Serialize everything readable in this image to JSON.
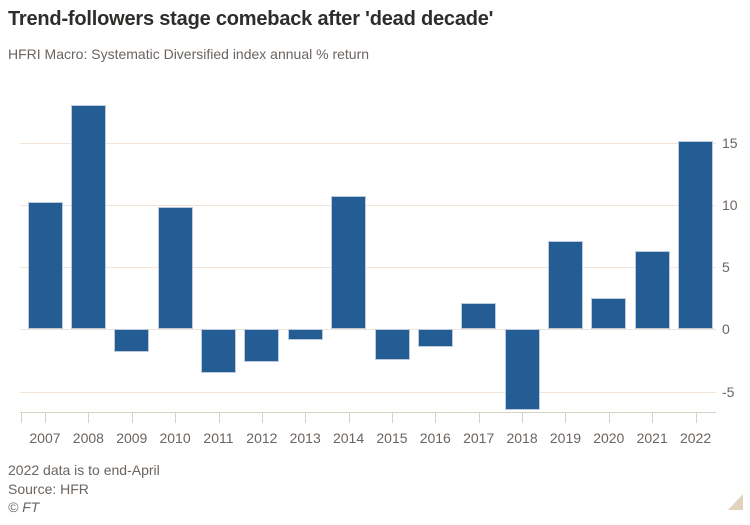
{
  "header": {
    "title": "Trend-followers stage comeback after 'dead decade'",
    "subtitle": "HFRI Macro: Systematic Diversified index annual % return"
  },
  "footer": {
    "note": "2022 data is to end-April",
    "source": "Source: HFR",
    "copyright": "© FT"
  },
  "chart_data": {
    "type": "bar",
    "title": "Trend-followers stage comeback after 'dead decade'",
    "subtitle": "HFRI Macro: Systematic Diversified index annual % return",
    "categories": [
      "2007",
      "2008",
      "2009",
      "2010",
      "2011",
      "2012",
      "2013",
      "2014",
      "2015",
      "2016",
      "2017",
      "2018",
      "2019",
      "2020",
      "2021",
      "2022"
    ],
    "values": [
      10.2,
      18.0,
      -1.8,
      9.8,
      -3.5,
      -2.6,
      -0.9,
      10.7,
      -2.5,
      -1.4,
      2.1,
      -6.5,
      7.1,
      2.5,
      6.3,
      15.1
    ],
    "xlabel": "",
    "ylabel": "annual % return",
    "yticks": [
      15,
      10,
      5,
      0,
      -5
    ],
    "ylim": [
      -6.6,
      19.6
    ],
    "grid": true,
    "legend": "none",
    "yaxis_side": "right",
    "colors": {
      "bar": "#235d94",
      "bar_edge": "#bccadb",
      "grid": "#f2e5d8",
      "axis": "#d9d0c6",
      "text": "#2f2d2b",
      "muted": "#6b645f",
      "corner": "#e2d2c0"
    }
  }
}
